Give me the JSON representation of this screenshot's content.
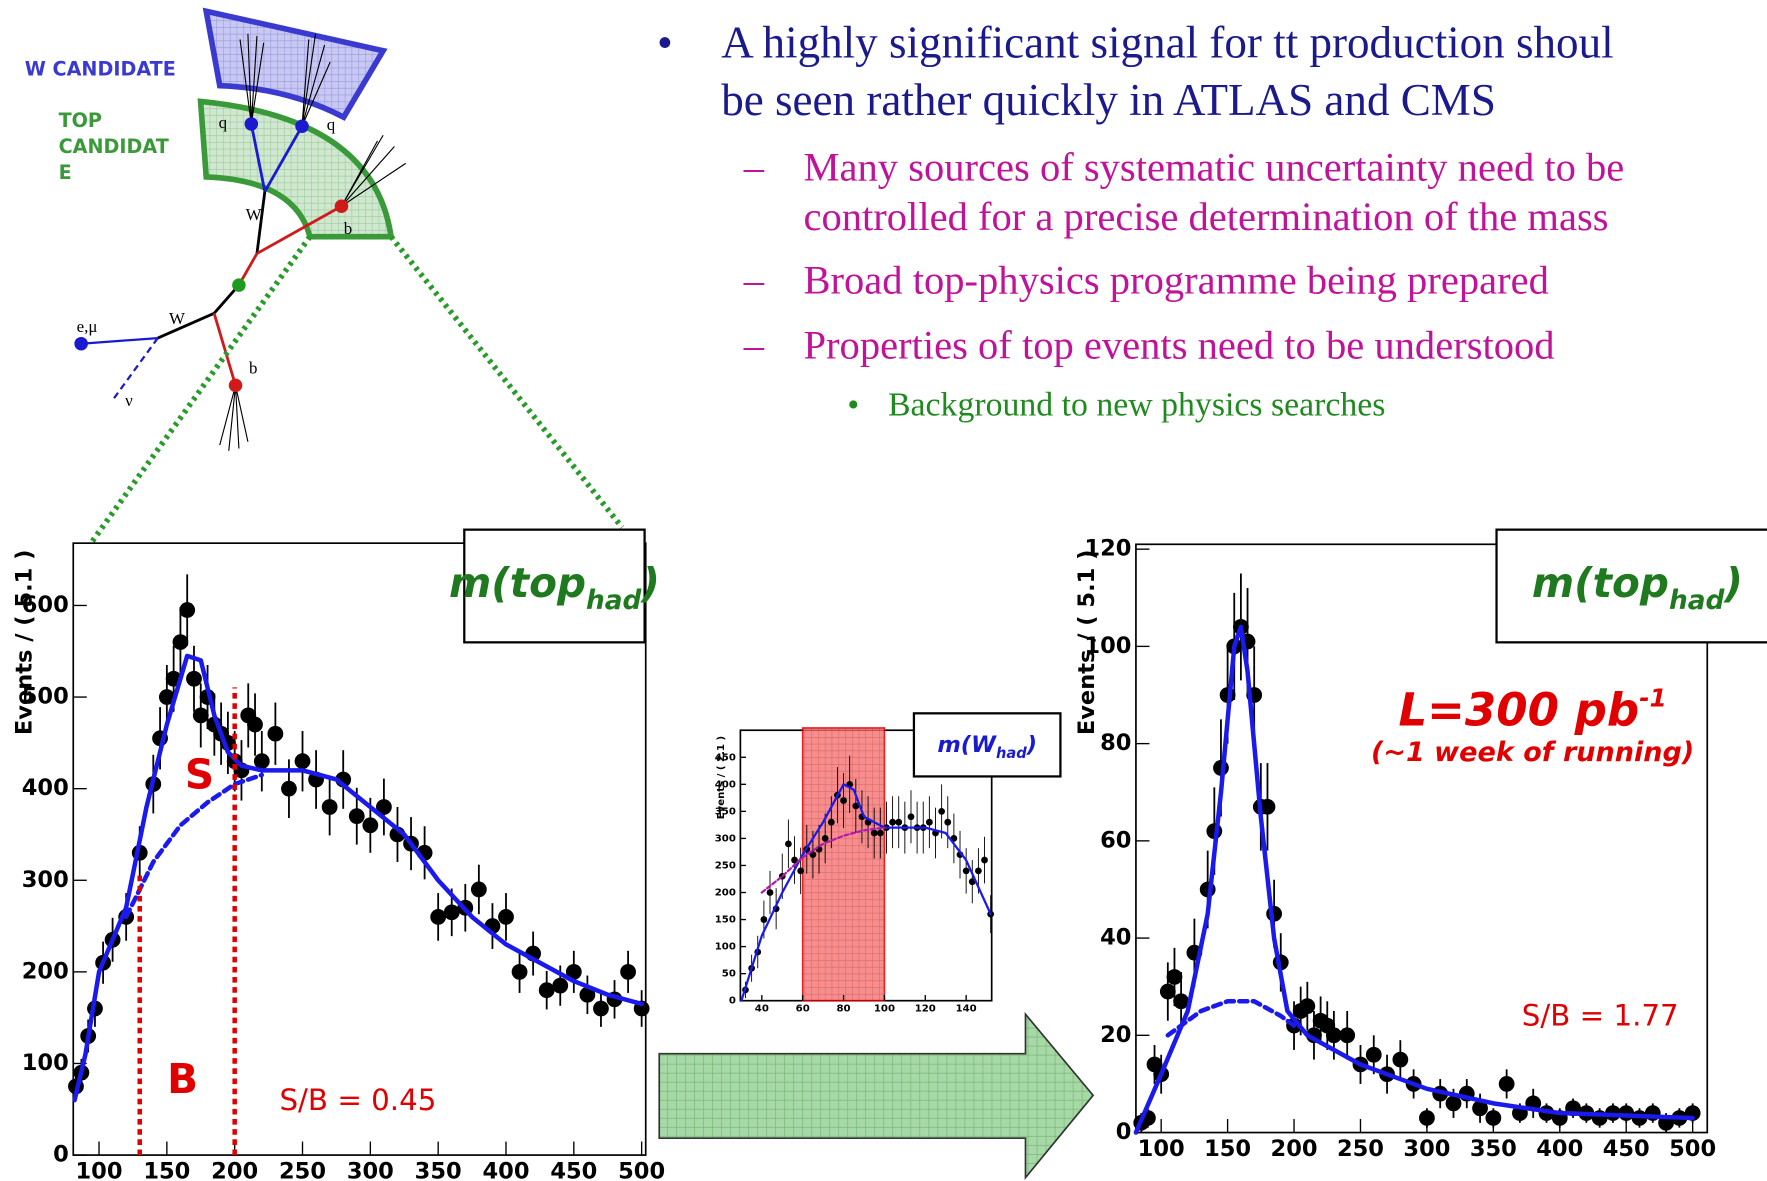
{
  "slide": {
    "bullet1": [
      "A highly significant signal for tt production shoul",
      "be seen rather quickly in ATLAS and CMS"
    ],
    "sub_bullets": [
      [
        "Many sources of systematic uncertainty need to be",
        "controlled for a precise determination of the mass"
      ],
      [
        "Broad top-physics programme being prepared"
      ],
      [
        "Properties of top events need to be understood"
      ]
    ],
    "sub_sub_bullets": [
      "Background to new physics searches"
    ]
  },
  "diagram": {
    "w_candidate": "W CANDIDATE",
    "top_candidate": [
      "TOP",
      "CANDIDAT",
      "E"
    ],
    "labels": [
      "q",
      "q",
      "W",
      "b",
      "e,μ",
      "W",
      "ν",
      "b"
    ]
  },
  "chart_data": [
    {
      "type": "scatter",
      "ylabel": "Events / ( 5.1 )",
      "xlim": [
        81,
        503
      ],
      "ylim": [
        0,
        668
      ],
      "xticks": [
        100,
        150,
        200,
        250,
        300,
        350,
        400,
        450,
        500
      ],
      "yticks": [
        0,
        100,
        200,
        300,
        400,
        500,
        600
      ],
      "window": [
        130,
        200
      ],
      "window_style": "lines",
      "window_color": "#e00000",
      "label": {
        "text": "m(top",
        "sub": "had",
        "end": ")",
        "color": "#1f7a1f"
      },
      "annotations": [
        {
          "text": "S"
        },
        {
          "text": "B"
        },
        {
          "text": "S/B = 0.45"
        }
      ],
      "series": [
        {
          "style": "points",
          "color": "#000000",
          "x": [
            83,
            87,
            92,
            97,
            103,
            110,
            120,
            130,
            140,
            145,
            150,
            155,
            160,
            165,
            170,
            175,
            180,
            185,
            190,
            195,
            200,
            205,
            210,
            215,
            220,
            230,
            240,
            250,
            260,
            270,
            280,
            290,
            300,
            310,
            320,
            330,
            340,
            350,
            360,
            370,
            380,
            390,
            400,
            410,
            420,
            430,
            440,
            450,
            460,
            470,
            480,
            490,
            500
          ],
          "values": [
            75,
            90,
            130,
            160,
            210,
            235,
            260,
            330,
            405,
            455,
            500,
            520,
            560,
            595,
            520,
            480,
            500,
            470,
            460,
            450,
            430,
            420,
            480,
            470,
            430,
            460,
            400,
            430,
            410,
            380,
            410,
            370,
            360,
            380,
            350,
            340,
            330,
            260,
            265,
            270,
            290,
            250,
            260,
            200,
            220,
            180,
            185,
            200,
            175,
            160,
            170,
            200,
            160
          ],
          "errors": [
            15,
            15,
            18,
            20,
            23,
            24,
            26,
            29,
            32,
            34,
            35,
            36,
            38,
            39,
            36,
            35,
            35,
            34,
            34,
            34,
            33,
            33,
            35,
            34,
            33,
            34,
            32,
            33,
            32,
            31,
            32,
            31,
            30,
            31,
            30,
            29,
            29,
            26,
            26,
            26,
            27,
            25,
            26,
            23,
            24,
            21,
            22,
            23,
            21,
            20,
            21,
            23,
            20
          ]
        },
        {
          "style": "solid",
          "color": "#1a1aee",
          "x": [
            82,
            90,
            100,
            120,
            135,
            150,
            165,
            175,
            185,
            195,
            205,
            220,
            250,
            275,
            300,
            325,
            350,
            375,
            400,
            425,
            450,
            475,
            500
          ],
          "values": [
            60,
            110,
            200,
            270,
            380,
            470,
            545,
            540,
            480,
            440,
            425,
            420,
            420,
            410,
            380,
            350,
            300,
            260,
            230,
            210,
            190,
            175,
            165
          ]
        },
        {
          "style": "dashed",
          "color": "#1a1aee",
          "x": [
            120,
            140,
            160,
            180,
            200,
            220
          ],
          "values": [
            260,
            320,
            360,
            385,
            405,
            415
          ]
        }
      ]
    },
    {
      "type": "scatter",
      "ylabel": "Events / ( 2.1 )",
      "xlim": [
        29.5,
        152.5
      ],
      "ylim": [
        0,
        500
      ],
      "xticks": [
        40,
        60,
        80,
        100,
        120,
        140
      ],
      "yticks": [
        0,
        50,
        100,
        150,
        200,
        250,
        300,
        350,
        400,
        450
      ],
      "window": [
        60,
        100
      ],
      "window_style": "band",
      "window_color": "#e00000",
      "label": {
        "text": "m(W",
        "sub": "had",
        "end": ")",
        "color": "#1a1ad0"
      },
      "annotations": [],
      "series": [
        {
          "style": "points",
          "color": "#000000",
          "x": [
            32,
            35,
            38,
            41,
            44,
            47,
            50,
            53,
            56,
            59,
            62,
            65,
            68,
            71,
            74,
            77,
            80,
            83,
            86,
            89,
            92,
            95,
            98,
            101,
            104,
            107,
            110,
            113,
            116,
            119,
            122,
            125,
            128,
            131,
            134,
            137,
            140,
            143,
            146,
            149,
            152
          ],
          "values": [
            20,
            60,
            90,
            150,
            200,
            170,
            230,
            290,
            260,
            240,
            280,
            270,
            280,
            300,
            330,
            380,
            370,
            400,
            360,
            340,
            330,
            310,
            310,
            320,
            330,
            330,
            320,
            340,
            320,
            320,
            330,
            310,
            350,
            330,
            300,
            270,
            240,
            220,
            240,
            260,
            160
          ],
          "errors": [
            15,
            25,
            30,
            35,
            40,
            38,
            42,
            45,
            44,
            43,
            45,
            44,
            45,
            46,
            48,
            52,
            51,
            53,
            50,
            49,
            48,
            47,
            47,
            48,
            48,
            48,
            48,
            49,
            48,
            48,
            48,
            47,
            50,
            48,
            46,
            44,
            42,
            40,
            42,
            43,
            35
          ]
        },
        {
          "style": "solid",
          "color": "#1a1aee",
          "x": [
            30,
            40,
            50,
            60,
            70,
            80,
            85,
            90,
            100,
            110,
            120,
            130,
            140,
            152
          ],
          "values": [
            0,
            120,
            200,
            270,
            330,
            400,
            390,
            340,
            320,
            320,
            320,
            310,
            260,
            160
          ]
        },
        {
          "style": "dashed",
          "color": "#b01ab0",
          "x": [
            40,
            50,
            60,
            70,
            80,
            90,
            100
          ],
          "values": [
            200,
            230,
            265,
            290,
            305,
            315,
            320
          ]
        }
      ]
    },
    {
      "type": "scatter",
      "ylabel": "Events / ( 5.1 )",
      "xlim": [
        81,
        511
      ],
      "ylim": [
        0,
        121
      ],
      "xticks": [
        100,
        150,
        200,
        250,
        300,
        350,
        400,
        450,
        500
      ],
      "yticks": [
        0,
        20,
        40,
        60,
        80,
        100,
        120
      ],
      "label": {
        "text": "m(top",
        "sub": "had",
        "end": ")",
        "color": "#1f7a1f"
      },
      "annotations": [
        {
          "text": "L=300 pb",
          "sup": "-1"
        },
        {
          "text": "(~1 week of running)"
        },
        {
          "text": "S/B = 1.77"
        }
      ],
      "series": [
        {
          "style": "points",
          "color": "#000000",
          "x": [
            85,
            90,
            95,
            100,
            105,
            110,
            115,
            125,
            135,
            140,
            145,
            150,
            155,
            160,
            165,
            170,
            175,
            180,
            185,
            190,
            200,
            205,
            210,
            215,
            220,
            225,
            230,
            240,
            250,
            260,
            270,
            280,
            290,
            300,
            310,
            320,
            330,
            340,
            350,
            360,
            370,
            380,
            390,
            400,
            410,
            420,
            430,
            440,
            450,
            460,
            470,
            480,
            490,
            500
          ],
          "values": [
            2,
            3,
            14,
            12,
            29,
            32,
            27,
            37,
            50,
            62,
            75,
            90,
            100,
            104,
            101,
            90,
            67,
            67,
            45,
            35,
            22,
            25,
            26,
            20,
            23,
            22,
            20,
            20,
            14,
            16,
            12,
            15,
            10,
            3,
            8,
            6,
            8,
            5,
            3,
            10,
            4,
            6,
            4,
            3,
            5,
            4,
            3,
            4,
            4,
            3,
            4,
            2,
            3,
            4
          ],
          "errors": [
            2,
            2,
            4,
            4,
            6,
            6,
            6,
            7,
            8,
            9,
            10,
            10,
            11,
            11,
            11,
            10,
            9,
            9,
            7,
            6,
            5,
            5,
            5,
            5,
            5,
            5,
            5,
            5,
            4,
            4,
            4,
            4,
            3,
            2,
            3,
            3,
            3,
            3,
            2,
            3,
            2,
            3,
            2,
            2,
            2,
            2,
            2,
            2,
            2,
            2,
            2,
            2,
            2,
            2
          ]
        },
        {
          "style": "solid",
          "color": "#1a1aee",
          "x": [
            81,
            100,
            120,
            135,
            145,
            155,
            160,
            165,
            175,
            185,
            195,
            210,
            250,
            300,
            350,
            400,
            450,
            500
          ],
          "values": [
            0,
            12,
            25,
            45,
            70,
            100,
            104,
            95,
            65,
            40,
            25,
            20,
            14,
            9,
            6,
            4,
            3.5,
            3
          ]
        },
        {
          "style": "dashed",
          "color": "#1a1aee",
          "x": [
            105,
            130,
            150,
            170,
            190,
            200
          ],
          "values": [
            20,
            25,
            27,
            27,
            24,
            22
          ]
        }
      ]
    }
  ]
}
